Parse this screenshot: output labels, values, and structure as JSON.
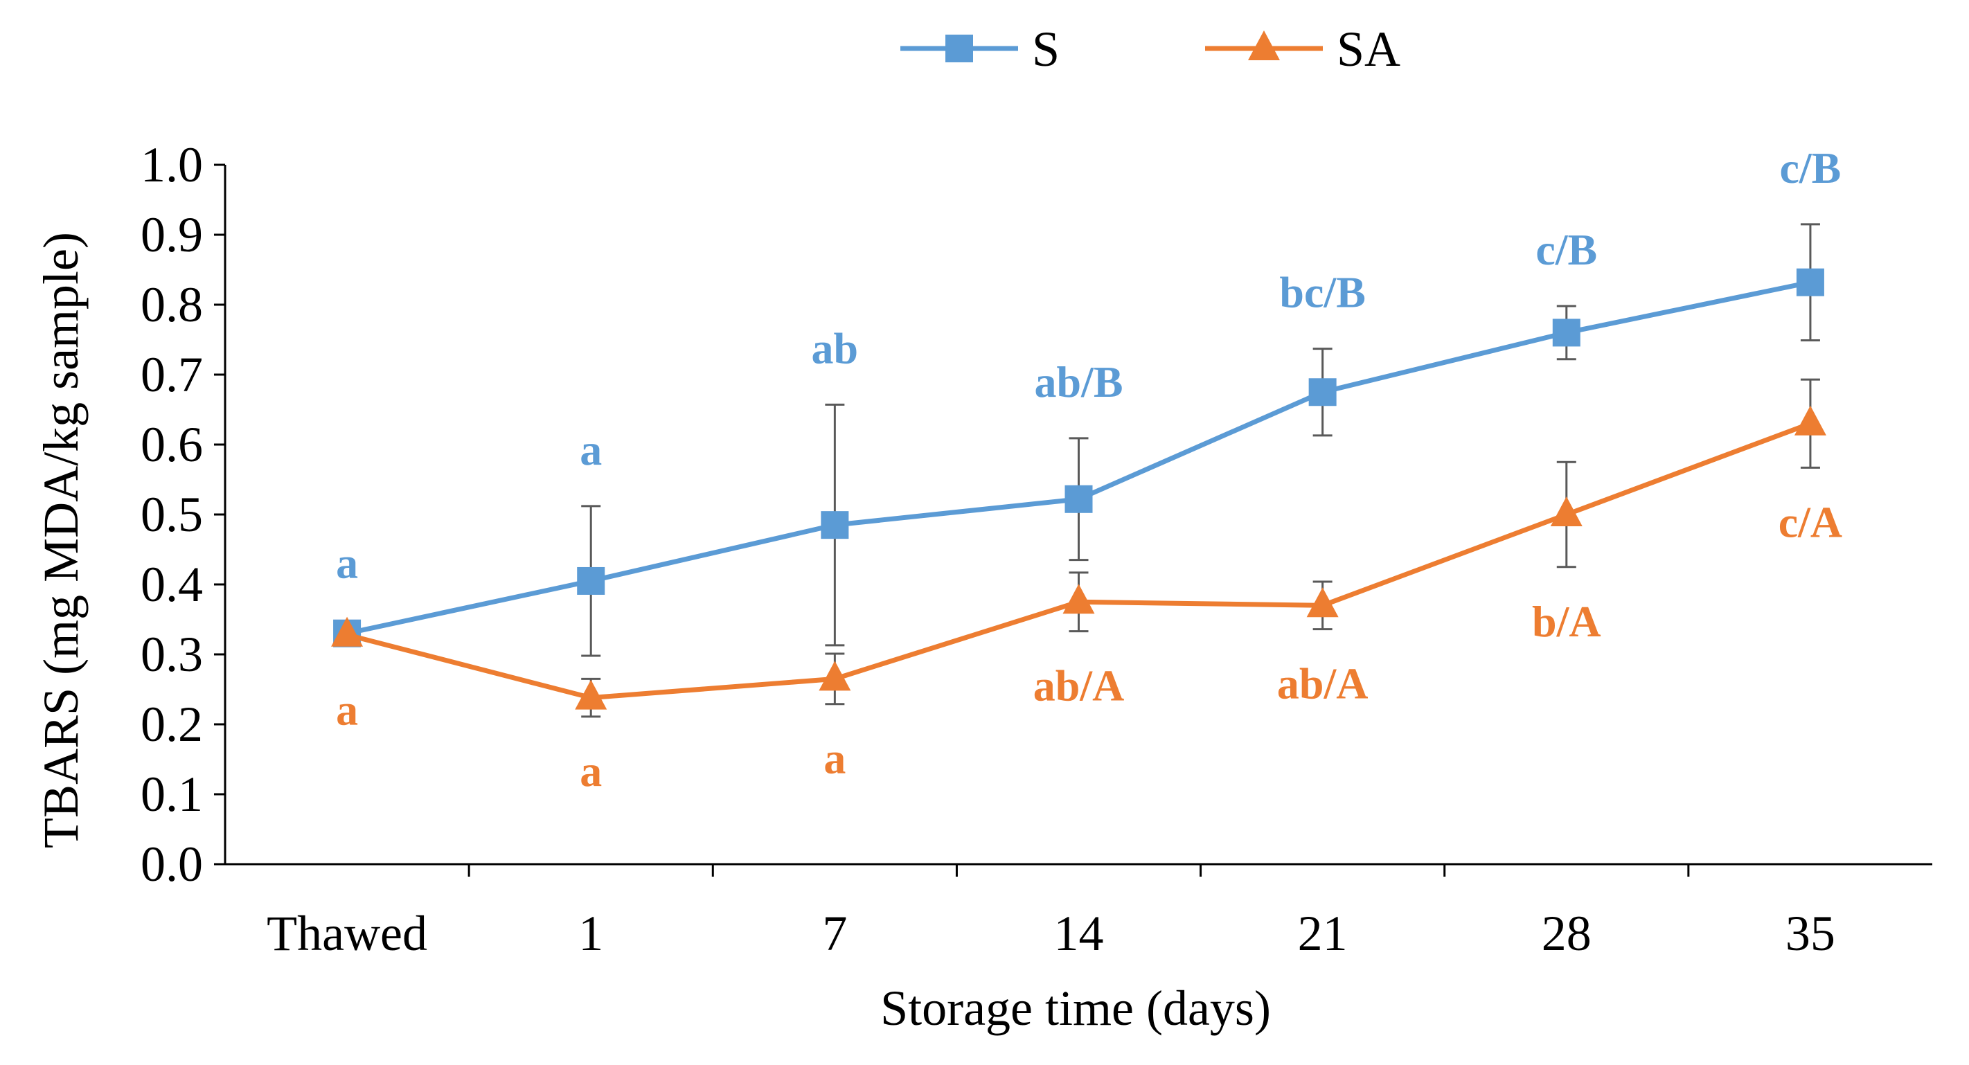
{
  "chart_data": {
    "type": "line",
    "categories": [
      "Thawed",
      "1",
      "7",
      "14",
      "21",
      "28",
      "35"
    ],
    "xlabel": "Storage time (days)",
    "ylabel": "TBARS (mg MDA/kg sample)",
    "ylim": [
      0,
      1.0
    ],
    "yticks": [
      "0.0",
      "0.1",
      "0.2",
      "0.3",
      "0.4",
      "0.5",
      "0.6",
      "0.7",
      "0.8",
      "0.9",
      "1.0"
    ],
    "grid": false,
    "legend_position": "top-center",
    "series": [
      {
        "name": "S",
        "color": "#5B9BD5",
        "marker": "square",
        "values": [
          0.33,
          0.405,
          0.485,
          0.522,
          0.675,
          0.76,
          0.832
        ],
        "errors": [
          0.0,
          0.107,
          0.172,
          0.087,
          0.062,
          0.038,
          0.083
        ],
        "letters": [
          "a",
          "a",
          "ab",
          "ab/B",
          "bc/B",
          "c/B",
          "c/B"
        ]
      },
      {
        "name": "SA",
        "color": "#ED7D31",
        "marker": "triangle",
        "values": [
          0.328,
          0.238,
          0.265,
          0.375,
          0.37,
          0.5,
          0.63
        ],
        "errors": [
          0.0,
          0.027,
          0.036,
          0.042,
          0.034,
          0.075,
          0.063
        ],
        "letters": [
          "a",
          "a",
          "a",
          "ab/A",
          "ab/A",
          "b/A",
          "c/A"
        ]
      }
    ]
  }
}
